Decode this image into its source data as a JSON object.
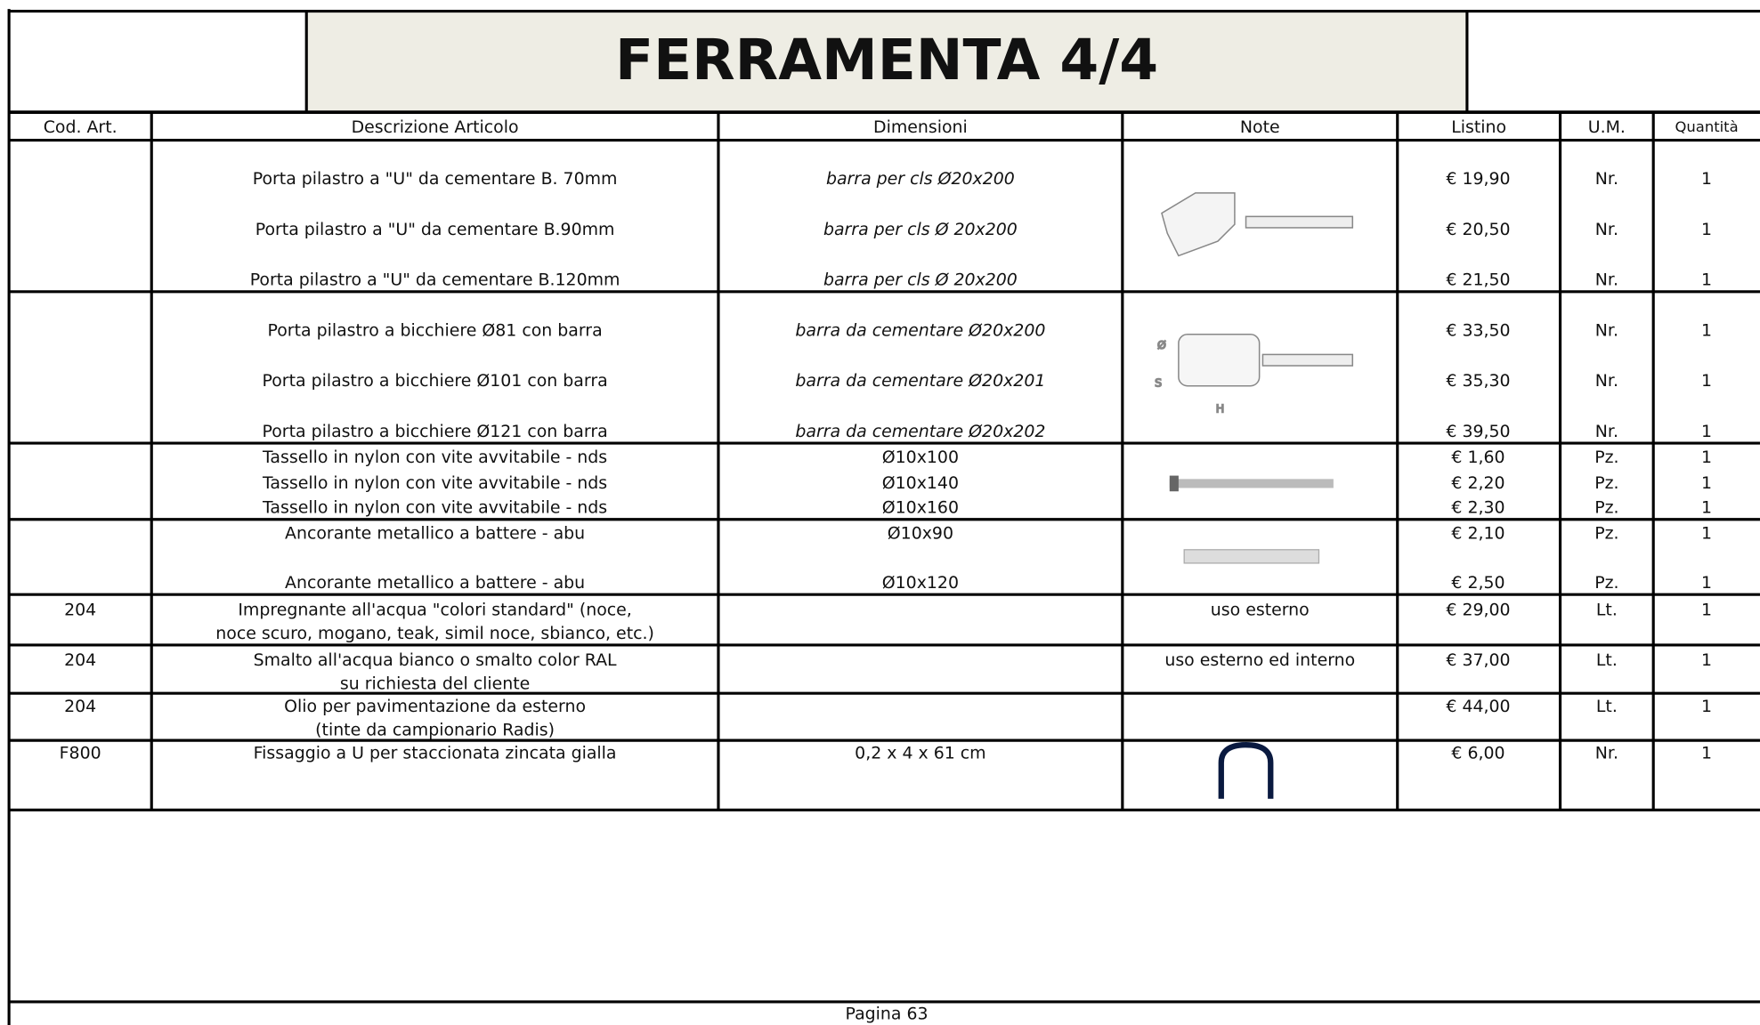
{
  "header": {
    "title": "FERRAMENTA 4/4"
  },
  "table": {
    "columns": [
      "Cod. Art.",
      "Descrizione Articolo",
      "Dimensioni",
      "Note",
      "Listino",
      "U.M.",
      "Quantità"
    ],
    "groups": [
      {
        "items": [
          {
            "desc": [
              "Porta pilastro a \"U\" da cementare B. 70mm"
            ],
            "dim": "barra per cls Ø20x200",
            "price": "€ 19,90",
            "um": "Nr.",
            "qty": 1
          },
          {
            "desc": [
              "Porta pilastro a \"U\" da cementare B.90mm"
            ],
            "dim": "barra per cls Ø 20x200",
            "price": "€ 20,50",
            "um": "Nr.",
            "qty": 1
          },
          {
            "desc": [
              "Porta pilastro a \"U\" da cementare B.120mm"
            ],
            "dim": "barra per cls Ø 20x200",
            "price": "€ 21,50",
            "um": "Nr.",
            "qty": 1
          }
        ]
      },
      {
        "items": [
          {
            "desc": [
              "Porta pilastro a bicchiere Ø81 con barra"
            ],
            "dim": "barra da cementare Ø20x200",
            "price": "€ 33,50",
            "um": "Nr.",
            "qty": 1
          },
          {
            "desc": [
              "Porta pilastro a bicchiere Ø101 con barra"
            ],
            "dim": "barra da cementare Ø20x201",
            "price": "€ 35,30",
            "um": "Nr.",
            "qty": 1
          },
          {
            "desc": [
              "Porta pilastro a bicchiere Ø121 con barra"
            ],
            "dim": "barra da cementare Ø20x202",
            "price": "€ 39,50",
            "um": "Nr.",
            "qty": 1
          }
        ]
      },
      {
        "items": [
          {
            "desc": [
              "Tassello in nylon con vite avvitabile - nds"
            ],
            "dim": "Ø10x100",
            "price": "€ 1,60",
            "um": "Pz.",
            "qty": 1
          },
          {
            "desc": [
              "Tassello in nylon con vite avvitabile - nds"
            ],
            "dim": "Ø10x140",
            "price": "€ 2,20",
            "um": "Pz.",
            "qty": 1
          },
          {
            "desc": [
              "Tassello in nylon con vite avvitabile - nds"
            ],
            "dim": "Ø10x160",
            "price": "€ 2,30",
            "um": "Pz.",
            "qty": 1
          }
        ]
      },
      {
        "items": [
          {
            "desc": [
              "Ancorante metallico a battere - abu"
            ],
            "dim": "Ø10x90",
            "price": "€ 2,10",
            "um": "Pz.",
            "qty": 1
          },
          {
            "desc": [
              "Ancorante metallico a battere - abu"
            ],
            "dim": "Ø10x120",
            "price": "€ 2,50",
            "um": "Pz.",
            "qty": 1
          }
        ]
      },
      {
        "code": "204",
        "note": "uso esterno",
        "items": [
          {
            "desc": [
              "Impregnante all'acqua \"colori standard\" (noce,",
              "noce scuro, mogano, teak, simil noce, sbianco, etc.)"
            ],
            "price": "€ 29,00",
            "um": "Lt.",
            "qty": 1
          }
        ]
      },
      {
        "code": "204",
        "note": "uso esterno ed interno",
        "items": [
          {
            "desc": [
              "Smalto all'acqua bianco o smalto color RAL",
              "su richiesta del cliente"
            ],
            "price": "€ 37,00",
            "um": "Lt.",
            "qty": 1
          }
        ]
      },
      {
        "code": "204",
        "items": [
          {
            "desc": [
              "Olio per pavimentazione da esterno",
              "(tinte da campionario Radis)"
            ],
            "price": "€ 44,00",
            "um": "Lt.",
            "qty": 1
          }
        ]
      },
      {
        "code": "F800",
        "items": [
          {
            "desc": [
              "Fissaggio a U per staccionata zincata gialla"
            ],
            "dim": "0,2 x 4 x 61 cm",
            "price": "€ 6,00",
            "um": "Nr.",
            "qty": 1
          }
        ]
      }
    ]
  },
  "footer": {
    "page": "Pagina 63"
  }
}
